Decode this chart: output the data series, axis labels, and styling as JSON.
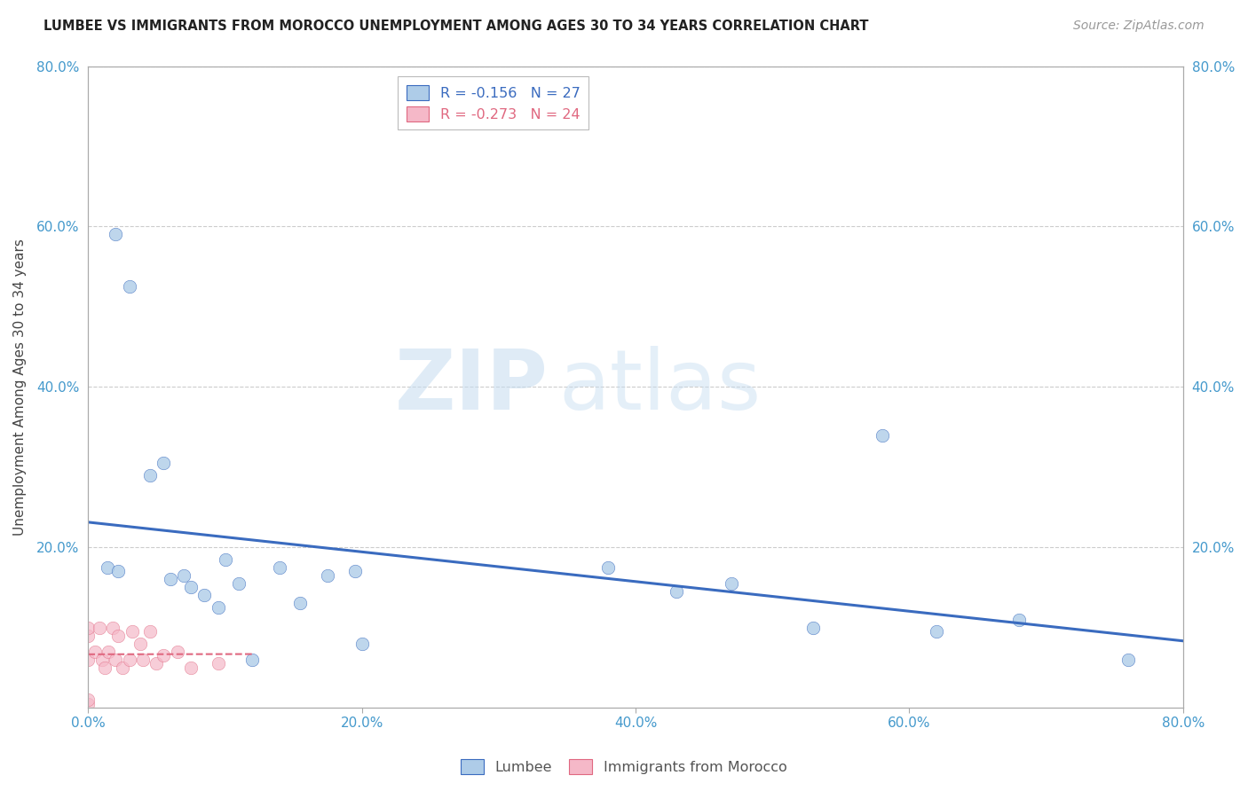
{
  "title": "LUMBEE VS IMMIGRANTS FROM MOROCCO UNEMPLOYMENT AMONG AGES 30 TO 34 YEARS CORRELATION CHART",
  "source": "Source: ZipAtlas.com",
  "ylabel": "Unemployment Among Ages 30 to 34 years",
  "lumbee_r": -0.156,
  "lumbee_n": 27,
  "morocco_r": -0.273,
  "morocco_n": 24,
  "lumbee_color": "#aecce8",
  "morocco_color": "#f5b8c8",
  "trend_lumbee_color": "#3a6bbf",
  "trend_morocco_color": "#e06880",
  "background_color": "#ffffff",
  "grid_color": "#cccccc",
  "axis_label_color": "#4499cc",
  "xlim": [
    0,
    0.8
  ],
  "ylim": [
    0,
    0.8
  ],
  "xtick_labels": [
    "0.0%",
    "20.0%",
    "40.0%",
    "60.0%",
    "80.0%"
  ],
  "xtick_vals": [
    0.0,
    0.2,
    0.4,
    0.6,
    0.8
  ],
  "ytick_labels": [
    "20.0%",
    "40.0%",
    "60.0%",
    "80.0%"
  ],
  "ytick_vals": [
    0.2,
    0.4,
    0.6,
    0.8
  ],
  "lumbee_x": [
    0.014,
    0.02,
    0.022,
    0.03,
    0.045,
    0.055,
    0.06,
    0.07,
    0.075,
    0.085,
    0.095,
    0.1,
    0.11,
    0.12,
    0.14,
    0.155,
    0.175,
    0.195,
    0.2,
    0.38,
    0.43,
    0.47,
    0.53,
    0.58,
    0.62,
    0.68,
    0.76
  ],
  "lumbee_y": [
    0.175,
    0.59,
    0.17,
    0.525,
    0.29,
    0.305,
    0.16,
    0.165,
    0.15,
    0.14,
    0.125,
    0.185,
    0.155,
    0.06,
    0.175,
    0.13,
    0.165,
    0.17,
    0.08,
    0.175,
    0.145,
    0.155,
    0.1,
    0.34,
    0.095,
    0.11,
    0.06
  ],
  "morocco_x": [
    0.0,
    0.0,
    0.0,
    0.0,
    0.0,
    0.005,
    0.008,
    0.01,
    0.012,
    0.015,
    0.018,
    0.02,
    0.022,
    0.025,
    0.03,
    0.032,
    0.038,
    0.04,
    0.045,
    0.05,
    0.055,
    0.065,
    0.075,
    0.095
  ],
  "morocco_y": [
    0.005,
    0.01,
    0.06,
    0.09,
    0.1,
    0.07,
    0.1,
    0.06,
    0.05,
    0.07,
    0.1,
    0.06,
    0.09,
    0.05,
    0.06,
    0.095,
    0.08,
    0.06,
    0.095,
    0.055,
    0.065,
    0.07,
    0.05,
    0.055
  ],
  "watermark_zip": "ZIP",
  "watermark_atlas": "atlas",
  "legend_box_color": "#ffffff",
  "marker_size": 110,
  "legend_label_lumbee": "R = -0.156   N = 27",
  "legend_label_morocco": "R = -0.273   N = 24"
}
